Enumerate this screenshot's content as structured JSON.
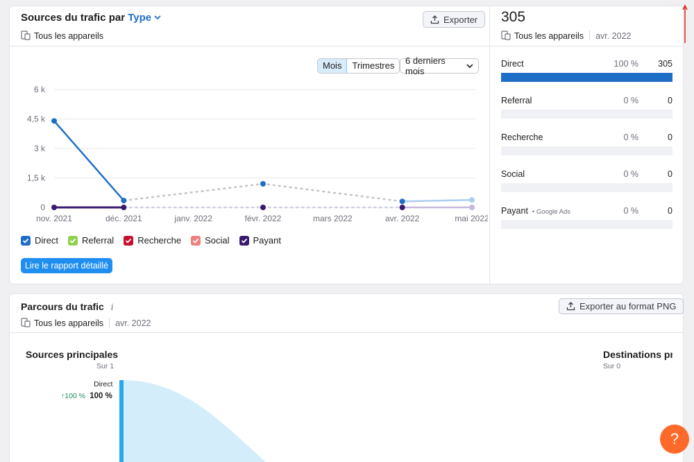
{
  "traffic_card": {
    "title": "Sources du trafic par",
    "title_type": "Type",
    "devices": "Tous les appareils",
    "export_label": "Exporter",
    "period_buttons": [
      "Mois",
      "Trimestres"
    ],
    "range_label": "6 derniers mois",
    "detail_button": "Lire le rapport détaillé",
    "legend": [
      {
        "label": "Direct",
        "color": "#1e6ec8"
      },
      {
        "label": "Referral",
        "color": "#8fd14f"
      },
      {
        "label": "Recherche",
        "color": "#c8102e"
      },
      {
        "label": "Social",
        "color": "#f08080"
      },
      {
        "label": "Payant",
        "color": "#3a1a6e"
      }
    ]
  },
  "summary": {
    "total": "305",
    "devices": "Tous les appareils",
    "date": "avr. 2022",
    "rows": [
      {
        "label": "Direct",
        "sub": "",
        "pct": "100 %",
        "value": "305",
        "fill": 1.0
      },
      {
        "label": "Referral",
        "sub": "",
        "pct": "0 %",
        "value": "0",
        "fill": 0
      },
      {
        "label": "Recherche",
        "sub": "",
        "pct": "0 %",
        "value": "0",
        "fill": 0
      },
      {
        "label": "Social",
        "sub": "",
        "pct": "0 %",
        "value": "0",
        "fill": 0
      },
      {
        "label": "Payant",
        "sub": "Google Ads",
        "pct": "0 %",
        "value": "0",
        "fill": 0
      }
    ]
  },
  "journey_card": {
    "title": "Parcours du trafic",
    "info_icon": "info-icon",
    "export_label": "Exporter au format PNG",
    "devices": "Tous les appareils",
    "date": "avr. 2022",
    "sources_title": "Sources principales",
    "sources_sub": "Sur 1",
    "destinations_title": "Destinations pri",
    "destinations_sub": "Sur 0",
    "flow_label": "Direct",
    "flow_change": "↑100 %",
    "flow_pct": "100 %"
  },
  "chart_data": {
    "type": "line",
    "categories": [
      "nov. 2021",
      "déc. 2021",
      "janv. 2022",
      "févr. 2022",
      "mars 2022",
      "avr. 2022",
      "mai 2022"
    ],
    "y_ticks": [
      "6 k",
      "4,5 k",
      "3 k",
      "1,5 k",
      "0"
    ],
    "ylim": [
      0,
      6000
    ],
    "grid": true,
    "series": [
      {
        "name": "Direct",
        "color": "#1e6ec8",
        "solid": [
          4400,
          350
        ],
        "dashed_points": [
          [
            1,
            350
          ],
          [
            3,
            1200
          ],
          [
            5,
            305
          ]
        ],
        "tail": [
          [
            5,
            305
          ],
          [
            6,
            380
          ]
        ]
      },
      {
        "name": "Payant",
        "color": "#3a1a6e",
        "solid": [
          0,
          0
        ],
        "dashed_points": [
          [
            1,
            0
          ],
          [
            3,
            0
          ],
          [
            5,
            0
          ]
        ],
        "tail": [
          [
            5,
            0
          ],
          [
            6,
            0
          ]
        ]
      }
    ]
  },
  "help_label": "?"
}
